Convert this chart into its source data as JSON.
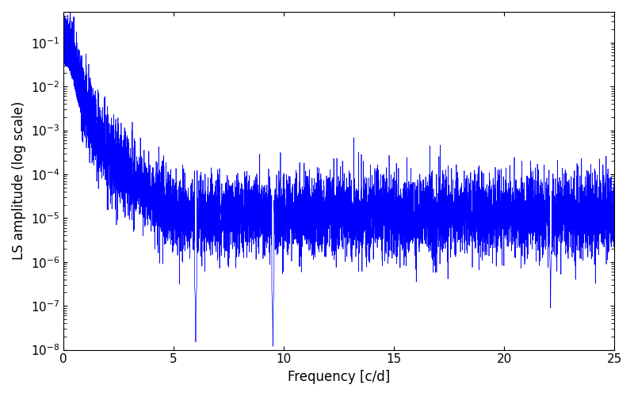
{
  "title": "",
  "xlabel": "Frequency [c/d]",
  "ylabel": "LS amplitude (log scale)",
  "xlim": [
    0,
    25
  ],
  "ylim": [
    1e-08,
    0.5
  ],
  "line_color": "#0000FF",
  "line_width": 0.5,
  "background_color": "#ffffff",
  "figsize": [
    8.0,
    5.0
  ],
  "dpi": 100,
  "seed": 12345,
  "n_points": 8000
}
